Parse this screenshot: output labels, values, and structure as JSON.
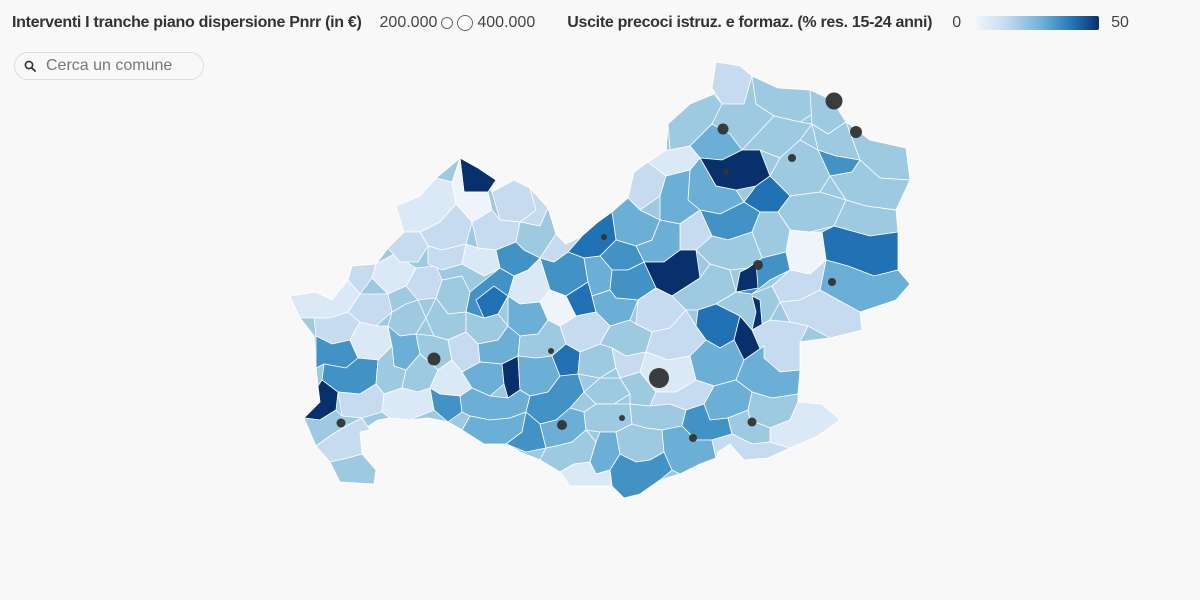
{
  "legend": {
    "size_title": "Interventi I tranche piano dispersione Pnrr (in €)",
    "size_min_label": "200.000",
    "size_max_label": "400.000",
    "color_title": "Uscite precoci istruz. e formaz. (% res. 15-24 anni)",
    "color_min_label": "0",
    "color_max_label": "50",
    "color_min": 0,
    "color_max": 50
  },
  "search": {
    "placeholder": "Cerca un comune"
  },
  "map": {
    "region_fill_value": 18,
    "colors": [
      "#eff4fb",
      "#dbe9f6",
      "#c6dbef",
      "#9ecae1",
      "#6baed6",
      "#4292c6",
      "#2171b5",
      "#08306b"
    ]
  }
}
